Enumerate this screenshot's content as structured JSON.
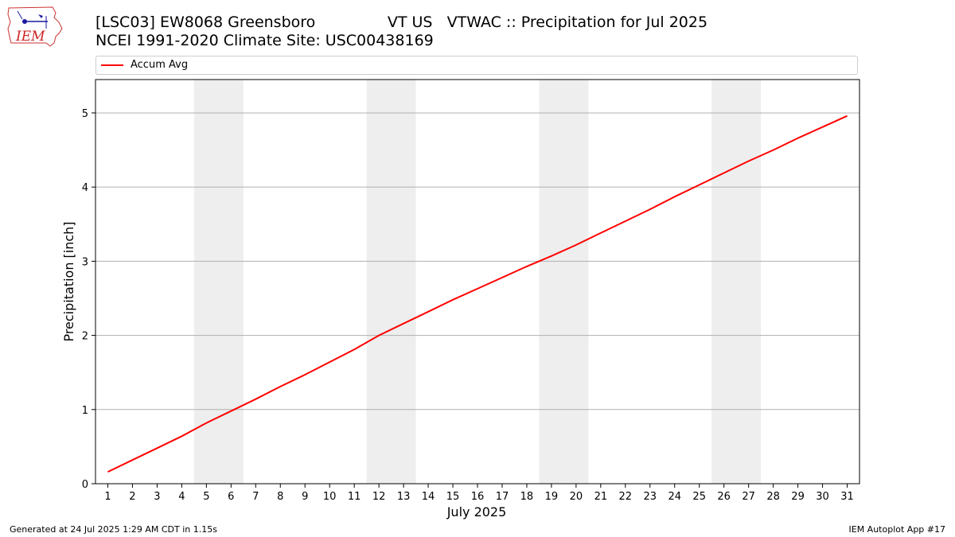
{
  "header": {
    "title_line1": "[LSC03] EW8068 Greensboro               VT US   VTWAC :: Precipitation for Jul 2025",
    "title_line2": "NCEI 1991-2020 Climate Site: USC00438169"
  },
  "logo": {
    "text": "IEM",
    "icon": "iem-iowa-logo"
  },
  "legend": {
    "label": "Accum Avg",
    "color": "#ff0000"
  },
  "footer": {
    "left": "Generated at 24 Jul 2025 1:29 AM CDT in 1.15s",
    "right": "IEM Autoplot App #17"
  },
  "chart_data": {
    "type": "line",
    "xlabel": "July 2025",
    "ylabel": "Precipitation [inch]",
    "x": [
      1,
      2,
      3,
      4,
      5,
      6,
      7,
      8,
      9,
      10,
      11,
      12,
      13,
      14,
      15,
      16,
      17,
      18,
      19,
      20,
      21,
      22,
      23,
      24,
      25,
      26,
      27,
      28,
      29,
      30,
      31
    ],
    "xlim": [
      0.5,
      31.5
    ],
    "ylim": [
      0,
      5.45
    ],
    "yticks": [
      0,
      1,
      2,
      3,
      4,
      5
    ],
    "grid": "y",
    "weekend_shading": [
      [
        4.5,
        6.5
      ],
      [
        11.5,
        13.5
      ],
      [
        18.5,
        20.5
      ],
      [
        25.5,
        27.5
      ]
    ],
    "shading_color": "#eeeeee",
    "series": [
      {
        "name": "Accum Avg",
        "color": "#ff0000",
        "values": [
          0.16,
          0.32,
          0.48,
          0.64,
          0.82,
          0.98,
          1.14,
          1.31,
          1.47,
          1.64,
          1.81,
          2.0,
          2.16,
          2.32,
          2.48,
          2.63,
          2.78,
          2.93,
          3.07,
          3.22,
          3.38,
          3.54,
          3.7,
          3.87,
          4.03,
          4.19,
          4.35,
          4.5,
          4.66,
          4.81,
          4.96
        ]
      }
    ]
  }
}
